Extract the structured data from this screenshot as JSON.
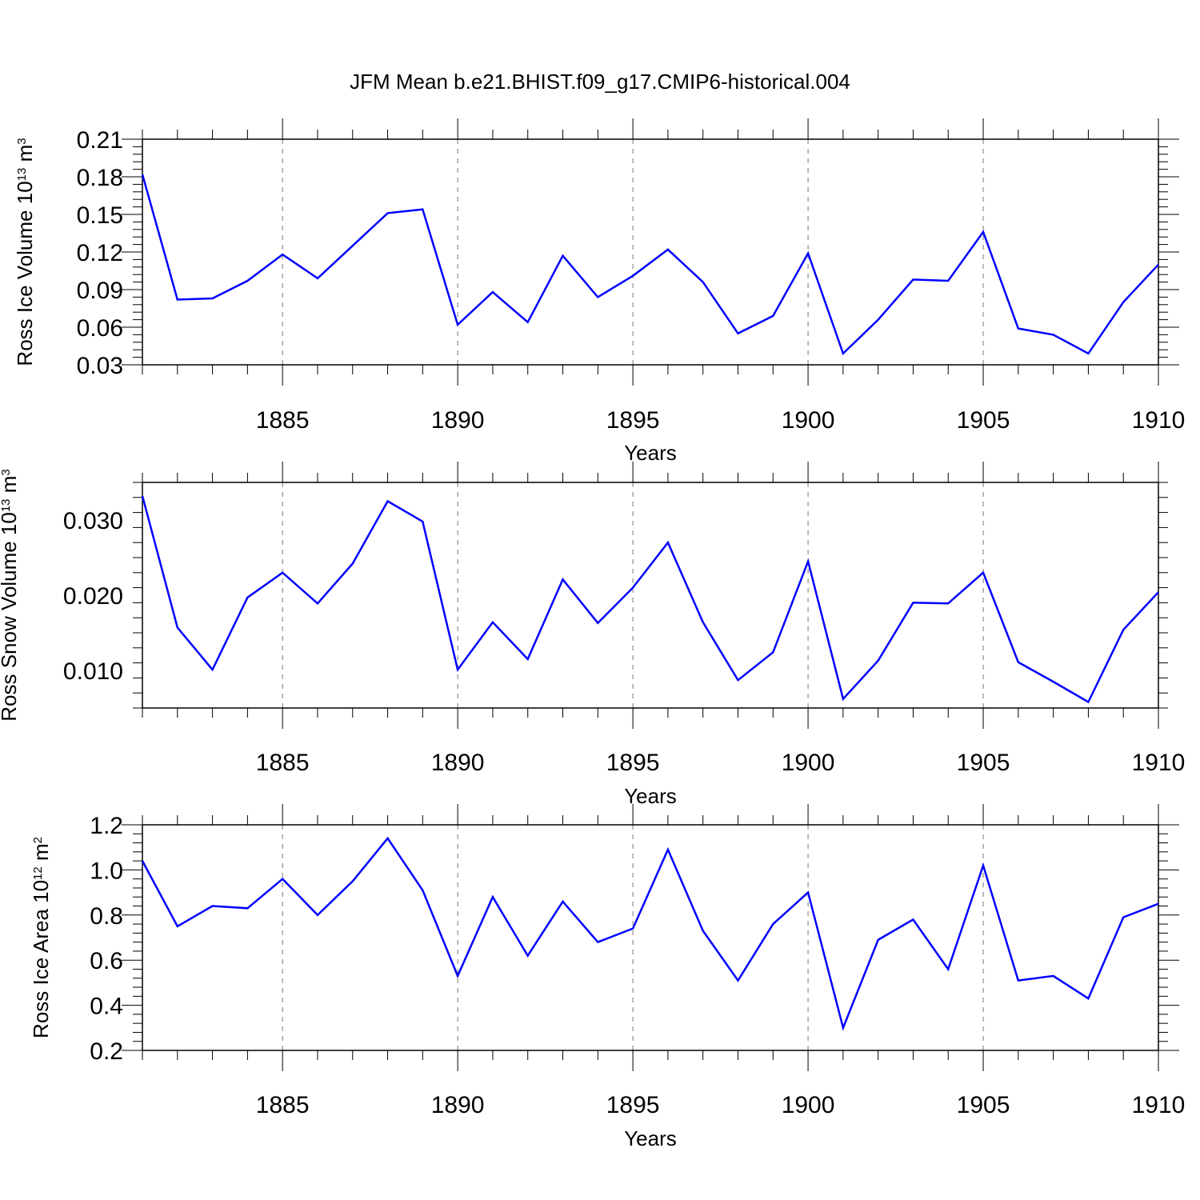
{
  "title": "JFM Mean b.e21.BHIST.f09_g17.CMIP6-historical.004",
  "style": {
    "line_color": "#0000ff",
    "axis_color": "#000000",
    "grid_color": "#777777",
    "background": "#ffffff"
  },
  "chart_data": [
    {
      "type": "line",
      "title": "",
      "xlabel": "Years",
      "ylabel": "Ross Ice Volume 10",
      "ylabel_exp": "13",
      "ylabel_unit": " m",
      "ylabel_unit_exp": "3",
      "xlim": [
        1881,
        1910
      ],
      "ylim": [
        0.03,
        0.21
      ],
      "xticks": [
        "1885",
        "1890",
        "1895",
        "1900",
        "1905",
        "1910"
      ],
      "yticks": [
        "0.03",
        "0.06",
        "0.09",
        "0.12",
        "0.15",
        "0.18",
        "0.21"
      ],
      "grid": "vertical dashed at labeled x ticks",
      "series": [
        {
          "x": [
            1881,
            1882,
            1883,
            1884,
            1885,
            1886,
            1887,
            1888,
            1889,
            1890,
            1891,
            1892,
            1893,
            1894,
            1895,
            1896,
            1897,
            1898,
            1899,
            1900,
            1901,
            1902,
            1903,
            1904,
            1905,
            1906,
            1907,
            1908,
            1909,
            1910
          ],
          "values": [
            0.182,
            0.082,
            0.083,
            0.097,
            0.118,
            0.099,
            0.125,
            0.151,
            0.154,
            0.062,
            0.088,
            0.064,
            0.117,
            0.084,
            0.101,
            0.122,
            0.096,
            0.055,
            0.069,
            0.119,
            0.039,
            0.066,
            0.098,
            0.097,
            0.136,
            0.059,
            0.054,
            0.039,
            0.08,
            0.11
          ]
        }
      ]
    },
    {
      "type": "line",
      "title": "",
      "xlabel": "Years",
      "ylabel": "Ross Snow Volume 10",
      "ylabel_exp": "13",
      "ylabel_unit": " m",
      "ylabel_unit_exp": "3",
      "xlim": [
        1881,
        1910
      ],
      "ylim": [
        0.005,
        0.035
      ],
      "xticks": [
        "1885",
        "1890",
        "1895",
        "1900",
        "1905",
        "1910"
      ],
      "yticks": [
        "0.010",
        "0.020",
        "0.030"
      ],
      "grid": "vertical dashed at labeled x ticks",
      "series": [
        {
          "x": [
            1881,
            1882,
            1883,
            1884,
            1885,
            1886,
            1887,
            1888,
            1889,
            1890,
            1891,
            1892,
            1893,
            1894,
            1895,
            1896,
            1897,
            1898,
            1899,
            1900,
            1901,
            1902,
            1903,
            1904,
            1905,
            1906,
            1907,
            1908,
            1909,
            1910
          ],
          "values": [
            0.0332,
            0.0157,
            0.0101,
            0.0197,
            0.023,
            0.0189,
            0.0242,
            0.0325,
            0.0298,
            0.0101,
            0.0164,
            0.0115,
            0.0221,
            0.0163,
            0.021,
            0.027,
            0.0164,
            0.0087,
            0.0124,
            0.0245,
            0.0062,
            0.0113,
            0.019,
            0.0189,
            0.023,
            0.0111,
            0.0085,
            0.0058,
            0.0154,
            0.0204
          ]
        }
      ]
    },
    {
      "type": "line",
      "title": "",
      "xlabel": "Years",
      "ylabel": "Ross Ice Area 10",
      "ylabel_exp": "12",
      "ylabel_unit": " m",
      "ylabel_unit_exp": "2",
      "xlim": [
        1881,
        1910
      ],
      "ylim": [
        0.2,
        1.2
      ],
      "xticks": [
        "1885",
        "1890",
        "1895",
        "1900",
        "1905",
        "1910"
      ],
      "yticks": [
        "0.2",
        "0.4",
        "0.6",
        "0.8",
        "1.0",
        "1.2"
      ],
      "grid": "vertical dashed at labeled x ticks",
      "series": [
        {
          "x": [
            1881,
            1882,
            1883,
            1884,
            1885,
            1886,
            1887,
            1888,
            1889,
            1890,
            1891,
            1892,
            1893,
            1894,
            1895,
            1896,
            1897,
            1898,
            1899,
            1900,
            1901,
            1902,
            1903,
            1904,
            1905,
            1906,
            1907,
            1908,
            1909,
            1910
          ],
          "values": [
            1.04,
            0.75,
            0.84,
            0.83,
            0.96,
            0.8,
            0.95,
            1.14,
            0.91,
            0.53,
            0.88,
            0.62,
            0.86,
            0.68,
            0.74,
            1.09,
            0.73,
            0.51,
            0.76,
            0.9,
            0.3,
            0.69,
            0.78,
            0.56,
            1.02,
            0.51,
            0.53,
            0.43,
            0.79,
            0.85
          ]
        }
      ]
    }
  ]
}
